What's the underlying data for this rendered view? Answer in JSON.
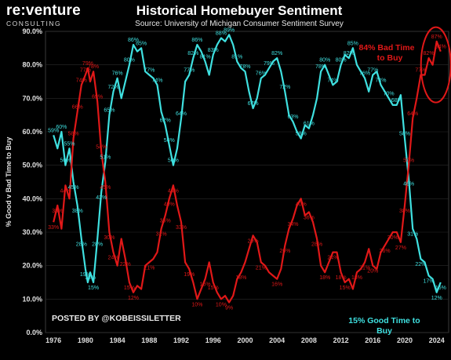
{
  "header": {
    "logo_main": "re:venture",
    "logo_sub": "CONSULTING",
    "title": "Historical Homebuyer Sentiment",
    "subtitle": "Source: University of Michigan Consumer Sentiment Survey"
  },
  "credit": "POSTED BY @KOBEISSILETTER",
  "annotations": {
    "bad_line1": "84% Bad Time",
    "bad_line2": "to Buy",
    "good_line1": "15% Good Time to",
    "good_line2": "Buy"
  },
  "colors": {
    "background": "#000000",
    "good": "#3fe0e0",
    "bad": "#e01818",
    "plot_border": "#3a3a3a",
    "grid": "#2a2a2a",
    "highlight_ellipse": "#e01818"
  },
  "chart_data": {
    "type": "line",
    "title": "Historical Homebuyer Sentiment",
    "xlabel": "",
    "ylabel": "% Good v Bad Time to Buy",
    "xlim": [
      1975,
      2025.5
    ],
    "ylim": [
      0,
      90
    ],
    "yticks": [
      "0.0%",
      "10.0%",
      "20.0%",
      "30.0%",
      "40.0%",
      "50.0%",
      "60.0%",
      "70.0%",
      "80.0%",
      "90.0%"
    ],
    "xticks": [
      "1976",
      "1980",
      "1984",
      "1988",
      "1992",
      "1996",
      "2000",
      "2004",
      "2008",
      "2012",
      "2016",
      "2020",
      "2024"
    ],
    "grid": true,
    "series": [
      {
        "name": "Good Time to Buy",
        "color": "#3fe0e0",
        "x": [
          1976.0,
          1976.5,
          1977.0,
          1977.5,
          1978.0,
          1978.5,
          1979.0,
          1979.5,
          1980.0,
          1980.3,
          1980.6,
          1981.0,
          1981.5,
          1982.0,
          1982.5,
          1983.0,
          1983.5,
          1984.0,
          1984.5,
          1985.0,
          1985.5,
          1986.0,
          1986.5,
          1987.0,
          1987.5,
          1988.0,
          1988.5,
          1989.0,
          1989.5,
          1990.0,
          1990.5,
          1991.0,
          1991.5,
          1992.0,
          1992.5,
          1993.0,
          1993.5,
          1994.0,
          1994.5,
          1995.0,
          1995.5,
          1996.0,
          1996.5,
          1997.0,
          1997.5,
          1998.0,
          1998.5,
          1999.0,
          1999.5,
          2000.0,
          2000.5,
          2001.0,
          2001.5,
          2002.0,
          2002.5,
          2003.0,
          2003.5,
          2004.0,
          2004.5,
          2005.0,
          2005.5,
          2006.0,
          2006.5,
          2007.0,
          2007.5,
          2008.0,
          2008.5,
          2009.0,
          2009.5,
          2010.0,
          2010.5,
          2011.0,
          2011.5,
          2012.0,
          2012.5,
          2013.0,
          2013.5,
          2014.0,
          2014.5,
          2015.0,
          2015.5,
          2016.0,
          2016.5,
          2017.0,
          2017.5,
          2018.0,
          2018.5,
          2019.0,
          2019.5,
          2020.0,
          2020.5,
          2021.0,
          2021.5,
          2022.0,
          2022.5,
          2023.0,
          2023.5,
          2024.0,
          2024.5
        ],
        "values": [
          59,
          55,
          60,
          50,
          55,
          45,
          38,
          28,
          19,
          15,
          18,
          15,
          28,
          42,
          51,
          65,
          72,
          76,
          70,
          75,
          80,
          86,
          84,
          85,
          78,
          77,
          76,
          74,
          66,
          62,
          56,
          50,
          55,
          64,
          75,
          77,
          82,
          86,
          84,
          81,
          77,
          83,
          86,
          88,
          87,
          89,
          86,
          81,
          79,
          78,
          72,
          67,
          70,
          76,
          77,
          79,
          81,
          82,
          78,
          72,
          65,
          63,
          60,
          58,
          62,
          61,
          65,
          70,
          78,
          80,
          77,
          74,
          75,
          80,
          83,
          82,
          85,
          80,
          78,
          76,
          72,
          77,
          78,
          74,
          72,
          70,
          68,
          68,
          71,
          58,
          46,
          31,
          28,
          22,
          21,
          17,
          16,
          12,
          15
        ]
      },
      {
        "name": "Bad Time to Buy",
        "color": "#e01818",
        "x": [
          1976.0,
          1976.5,
          1977.0,
          1977.5,
          1978.0,
          1978.5,
          1979.0,
          1979.5,
          1980.0,
          1980.3,
          1980.6,
          1981.0,
          1981.5,
          1982.0,
          1982.5,
          1983.0,
          1983.5,
          1984.0,
          1984.5,
          1985.0,
          1985.5,
          1986.0,
          1986.5,
          1987.0,
          1987.5,
          1988.0,
          1988.5,
          1989.0,
          1989.5,
          1990.0,
          1990.5,
          1991.0,
          1991.5,
          1992.0,
          1992.5,
          1993.0,
          1993.5,
          1994.0,
          1994.5,
          1995.0,
          1995.5,
          1996.0,
          1996.5,
          1997.0,
          1997.5,
          1998.0,
          1998.5,
          1999.0,
          1999.5,
          2000.0,
          2000.5,
          2001.0,
          2001.5,
          2002.0,
          2002.5,
          2003.0,
          2003.5,
          2004.0,
          2004.5,
          2005.0,
          2005.5,
          2006.0,
          2006.5,
          2007.0,
          2007.5,
          2008.0,
          2008.5,
          2009.0,
          2009.5,
          2010.0,
          2010.5,
          2011.0,
          2011.5,
          2012.0,
          2012.5,
          2013.0,
          2013.5,
          2014.0,
          2014.5,
          2015.0,
          2015.5,
          2016.0,
          2016.5,
          2017.0,
          2017.5,
          2018.0,
          2018.5,
          2019.0,
          2019.5,
          2020.0,
          2020.5,
          2021.0,
          2021.5,
          2022.0,
          2022.5,
          2023.0,
          2023.5,
          2024.0,
          2024.5
        ],
        "values": [
          33,
          38,
          31,
          44,
          40,
          58,
          66,
          74,
          77,
          79,
          75,
          78,
          69,
          54,
          45,
          30,
          24,
          20,
          28,
          22,
          15,
          12,
          14,
          13,
          20,
          21,
          22,
          24,
          31,
          35,
          40,
          44,
          38,
          33,
          21,
          19,
          15,
          10,
          13,
          16,
          21,
          15,
          12,
          10,
          11,
          9,
          11,
          16,
          18,
          21,
          25,
          29,
          27,
          21,
          20,
          18,
          17,
          16,
          19,
          26,
          31,
          34,
          38,
          40,
          35,
          36,
          33,
          28,
          20,
          18,
          21,
          24,
          24,
          18,
          15,
          16,
          13,
          18,
          19,
          21,
          25,
          20,
          19,
          24,
          26,
          28,
          30,
          30,
          27,
          38,
          50,
          64,
          70,
          77,
          77,
          82,
          80,
          87,
          84
        ]
      }
    ],
    "data_labels": [
      {
        "s": "g",
        "x": 1976.0,
        "text": "59%"
      },
      {
        "s": "g",
        "x": 1977.0,
        "text": "60%"
      },
      {
        "s": "g",
        "x": 1977.5,
        "text": "50%"
      },
      {
        "s": "g",
        "x": 1978.0,
        "text": "55%"
      },
      {
        "s": "g",
        "x": 1978.5,
        "text": "45%"
      },
      {
        "s": "g",
        "x": 1979.0,
        "text": "38%"
      },
      {
        "s": "g",
        "x": 1979.5,
        "text": "28%"
      },
      {
        "s": "g",
        "x": 1980.0,
        "text": "19%"
      },
      {
        "s": "g",
        "x": 1980.6,
        "text": "18%"
      },
      {
        "s": "g",
        "x": 1981.0,
        "text": "15%"
      },
      {
        "s": "g",
        "x": 1981.5,
        "text": "28%"
      },
      {
        "s": "g",
        "x": 1982.0,
        "text": "42%"
      },
      {
        "s": "g",
        "x": 1982.5,
        "text": "51%"
      },
      {
        "s": "g",
        "x": 1983.0,
        "text": "65%"
      },
      {
        "s": "g",
        "x": 1983.5,
        "text": "72%"
      },
      {
        "s": "g",
        "x": 1984.0,
        "text": "76%"
      },
      {
        "s": "g",
        "x": 1985.5,
        "text": "80%"
      },
      {
        "s": "g",
        "x": 1986.0,
        "text": "86%"
      },
      {
        "s": "g",
        "x": 1987.0,
        "text": "85%"
      },
      {
        "s": "g",
        "x": 1988.0,
        "text": "77%"
      },
      {
        "s": "g",
        "x": 1989.0,
        "text": "74%"
      },
      {
        "s": "g",
        "x": 1990.0,
        "text": "62%"
      },
      {
        "s": "g",
        "x": 1990.5,
        "text": "56%"
      },
      {
        "s": "g",
        "x": 1991.0,
        "text": "50%"
      },
      {
        "s": "g",
        "x": 1992.0,
        "text": "64%"
      },
      {
        "s": "g",
        "x": 1993.0,
        "text": "77%"
      },
      {
        "s": "g",
        "x": 1993.5,
        "text": "82%"
      },
      {
        "s": "g",
        "x": 1994.0,
        "text": "86%"
      },
      {
        "s": "g",
        "x": 1995.0,
        "text": "81%"
      },
      {
        "s": "g",
        "x": 1996.0,
        "text": "83%"
      },
      {
        "s": "g",
        "x": 1997.0,
        "text": "88%"
      },
      {
        "s": "g",
        "x": 1998.0,
        "text": "89%"
      },
      {
        "s": "g",
        "x": 1999.0,
        "text": "81%"
      },
      {
        "s": "g",
        "x": 2000.0,
        "text": "78%"
      },
      {
        "s": "g",
        "x": 2001.0,
        "text": "67%"
      },
      {
        "s": "g",
        "x": 2002.0,
        "text": "76%"
      },
      {
        "s": "g",
        "x": 2003.0,
        "text": "79%"
      },
      {
        "s": "g",
        "x": 2004.0,
        "text": "82%"
      },
      {
        "s": "g",
        "x": 2005.0,
        "text": "72%"
      },
      {
        "s": "g",
        "x": 2006.0,
        "text": "63%"
      },
      {
        "s": "g",
        "x": 2007.0,
        "text": "58%"
      },
      {
        "s": "g",
        "x": 2008.0,
        "text": "61%"
      },
      {
        "s": "g",
        "x": 2009.5,
        "text": "78%"
      },
      {
        "s": "g",
        "x": 2010.0,
        "text": "80%"
      },
      {
        "s": "g",
        "x": 2011.0,
        "text": "74%"
      },
      {
        "s": "g",
        "x": 2012.0,
        "text": "80%"
      },
      {
        "s": "g",
        "x": 2013.0,
        "text": "82%"
      },
      {
        "s": "g",
        "x": 2013.5,
        "text": "85%"
      },
      {
        "s": "g",
        "x": 2015.0,
        "text": "76%"
      },
      {
        "s": "g",
        "x": 2016.0,
        "text": "77%"
      },
      {
        "s": "g",
        "x": 2017.0,
        "text": "74%"
      },
      {
        "s": "g",
        "x": 2018.0,
        "text": "70%"
      },
      {
        "s": "g",
        "x": 2019.0,
        "text": "68%"
      },
      {
        "s": "g",
        "x": 2020.0,
        "text": "58%"
      },
      {
        "s": "g",
        "x": 2020.5,
        "text": "46%"
      },
      {
        "s": "g",
        "x": 2021.0,
        "text": "31%"
      },
      {
        "s": "g",
        "x": 2022.0,
        "text": "22%"
      },
      {
        "s": "g",
        "x": 2023.0,
        "text": "17%"
      },
      {
        "s": "g",
        "x": 2024.0,
        "text": "12%"
      },
      {
        "s": "g",
        "x": 2024.5,
        "text": "15%"
      },
      {
        "s": "b",
        "x": 1976.0,
        "text": "33%"
      },
      {
        "s": "b",
        "x": 1976.5,
        "text": "38%"
      },
      {
        "s": "b",
        "x": 1977.5,
        "text": "44%"
      },
      {
        "s": "b",
        "x": 1978.5,
        "text": "58%"
      },
      {
        "s": "b",
        "x": 1979.0,
        "text": "66%"
      },
      {
        "s": "b",
        "x": 1979.5,
        "text": "74%"
      },
      {
        "s": "b",
        "x": 1980.0,
        "text": "77%"
      },
      {
        "s": "b",
        "x": 1980.3,
        "text": "79%"
      },
      {
        "s": "b",
        "x": 1981.0,
        "text": "78%"
      },
      {
        "s": "b",
        "x": 1981.5,
        "text": "69%"
      },
      {
        "s": "b",
        "x": 1982.0,
        "text": "54%"
      },
      {
        "s": "b",
        "x": 1982.5,
        "text": "45%"
      },
      {
        "s": "b",
        "x": 1983.0,
        "text": "30%"
      },
      {
        "s": "b",
        "x": 1983.5,
        "text": "24%"
      },
      {
        "s": "b",
        "x": 1985.0,
        "text": "22%"
      },
      {
        "s": "b",
        "x": 1985.5,
        "text": "15%"
      },
      {
        "s": "b",
        "x": 1986.0,
        "text": "12%"
      },
      {
        "s": "b",
        "x": 1988.0,
        "text": "21%"
      },
      {
        "s": "b",
        "x": 1989.5,
        "text": "31%"
      },
      {
        "s": "b",
        "x": 1990.0,
        "text": "35%"
      },
      {
        "s": "b",
        "x": 1990.5,
        "text": "40%"
      },
      {
        "s": "b",
        "x": 1991.0,
        "text": "44%"
      },
      {
        "s": "b",
        "x": 1992.0,
        "text": "33%"
      },
      {
        "s": "b",
        "x": 1993.0,
        "text": "19%"
      },
      {
        "s": "b",
        "x": 1994.0,
        "text": "10%"
      },
      {
        "s": "b",
        "x": 1995.0,
        "text": "16%"
      },
      {
        "s": "b",
        "x": 1996.0,
        "text": "15%"
      },
      {
        "s": "b",
        "x": 1997.0,
        "text": "10%"
      },
      {
        "s": "b",
        "x": 1998.0,
        "text": "9%"
      },
      {
        "s": "b",
        "x": 1999.5,
        "text": "18%"
      },
      {
        "s": "b",
        "x": 2001.0,
        "text": "29%"
      },
      {
        "s": "b",
        "x": 2002.0,
        "text": "21%"
      },
      {
        "s": "b",
        "x": 2004.0,
        "text": "16%"
      },
      {
        "s": "b",
        "x": 2005.0,
        "text": "26%"
      },
      {
        "s": "b",
        "x": 2006.0,
        "text": "34%"
      },
      {
        "s": "b",
        "x": 2007.0,
        "text": "40%"
      },
      {
        "s": "b",
        "x": 2008.0,
        "text": "36%"
      },
      {
        "s": "b",
        "x": 2009.0,
        "text": "28%"
      },
      {
        "s": "b",
        "x": 2010.0,
        "text": "18%"
      },
      {
        "s": "b",
        "x": 2011.0,
        "text": "24%"
      },
      {
        "s": "b",
        "x": 2012.0,
        "text": "18%"
      },
      {
        "s": "b",
        "x": 2012.5,
        "text": "15%"
      },
      {
        "s": "b",
        "x": 2014.0,
        "text": "18%"
      },
      {
        "s": "b",
        "x": 2015.0,
        "text": "21%"
      },
      {
        "s": "b",
        "x": 2016.0,
        "text": "20%"
      },
      {
        "s": "b",
        "x": 2017.5,
        "text": "26%"
      },
      {
        "s": "b",
        "x": 2018.5,
        "text": "30%"
      },
      {
        "s": "b",
        "x": 2019.5,
        "text": "27%"
      },
      {
        "s": "b",
        "x": 2020.0,
        "text": "38%"
      },
      {
        "s": "b",
        "x": 2020.5,
        "text": "50%"
      },
      {
        "s": "b",
        "x": 2021.0,
        "text": "64%"
      },
      {
        "s": "b",
        "x": 2022.0,
        "text": "77%"
      },
      {
        "s": "b",
        "x": 2023.0,
        "text": "82%"
      },
      {
        "s": "b",
        "x": 2024.0,
        "text": "87%"
      },
      {
        "s": "b",
        "x": 2024.5,
        "text": "84%"
      }
    ]
  }
}
